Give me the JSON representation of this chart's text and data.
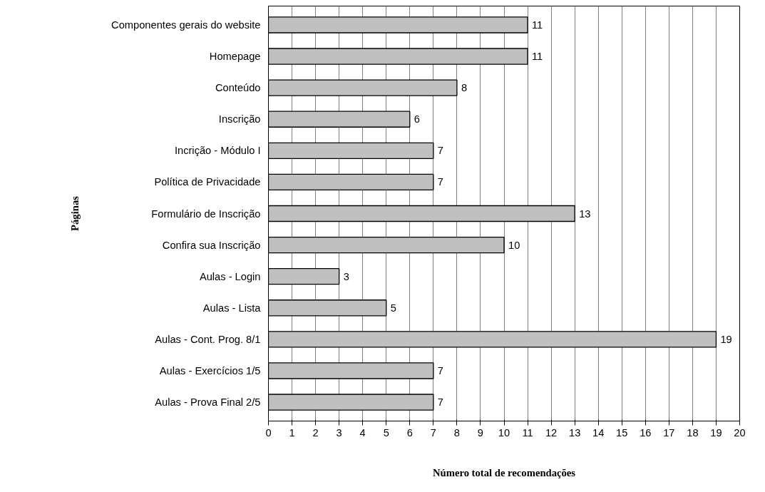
{
  "chart_data": {
    "type": "bar",
    "orientation": "horizontal",
    "xlabel": "Número total de recomendações",
    "ylabel": "Páginas",
    "categories": [
      "Componentes gerais do website",
      "Homepage",
      "Conteúdo",
      "Inscrição",
      "Incrição - Módulo I",
      "Política de Privacidade",
      "Formulário de Inscrição",
      "Confira sua Inscrição",
      "Aulas - Login",
      "Aulas - Lista",
      "Aulas - Cont. Prog. 8/1",
      "Aulas - Exercícios 1/5",
      "Aulas - Prova Final 2/5"
    ],
    "values": [
      11,
      11,
      8,
      6,
      7,
      7,
      13,
      10,
      3,
      5,
      19,
      7,
      7
    ],
    "color": "#c0c0c0",
    "xlim": [
      0,
      20
    ],
    "xticks": [
      0,
      1,
      2,
      3,
      4,
      5,
      6,
      7,
      8,
      9,
      10,
      11,
      12,
      13,
      14,
      15,
      16,
      17,
      18,
      19,
      20
    ],
    "grid": "x",
    "data_labels": true
  }
}
